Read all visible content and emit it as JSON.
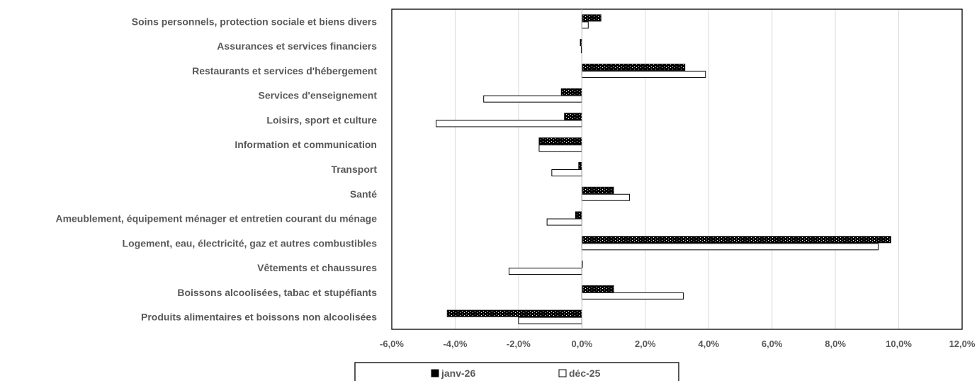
{
  "chart_data": {
    "type": "bar",
    "orientation": "horizontal",
    "categories": [
      "Soins personnels, protection sociale et biens divers",
      "Assurances et services financiers",
      "Restaurants et services d'hébergement",
      "Services d'enseignement",
      "Loisirs, sport et culture",
      "Information et communication",
      "Transport",
      "Santé",
      "Ameublement, équipement ménager et entretien courant du ménage",
      "Logement, eau, électricité, gaz et autres combustibles",
      "Vêtements et chaussures",
      "Boissons alcoolisées, tabac et stupéfiants",
      "Produits alimentaires et boissons non alcoolisées"
    ],
    "series": [
      {
        "name": "janv-26",
        "color": "#000000",
        "pattern": "dotted-black",
        "values": [
          0.6,
          -0.05,
          3.25,
          -0.65,
          -0.55,
          -1.35,
          -0.1,
          1.0,
          -0.2,
          9.75,
          0.0,
          1.0,
          -4.25
        ]
      },
      {
        "name": "déc-25",
        "color": "#ffffff",
        "pattern": "white-outline",
        "values": [
          0.2,
          -0.02,
          3.9,
          -3.1,
          -4.6,
          -1.35,
          -0.95,
          1.5,
          -1.1,
          9.35,
          -2.3,
          3.2,
          -2.0
        ]
      }
    ],
    "xlim": [
      -6,
      12
    ],
    "xticks": [
      "-6,0%",
      "-4,0%",
      "-2,0%",
      "0,0%",
      "2,0%",
      "4,0%",
      "6,0%",
      "8,0%",
      "10,0%",
      "12,0%"
    ],
    "xtick_values": [
      -6,
      -4,
      -2,
      0,
      2,
      4,
      6,
      8,
      10,
      12
    ],
    "grid": "vertical",
    "legend_position": "bottom"
  }
}
